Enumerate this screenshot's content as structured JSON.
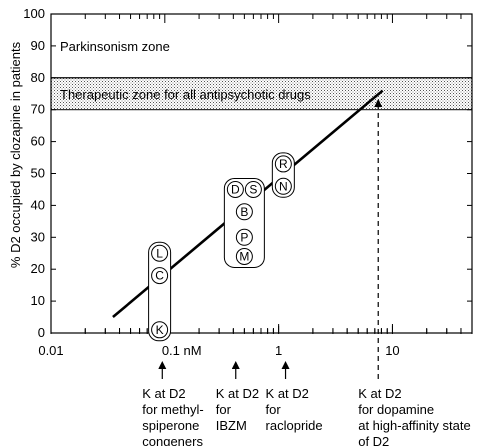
{
  "chart_data": {
    "type": "scatter",
    "title": "",
    "xlabel": "",
    "ylabel": "% D2 occupied by clozapine in patients",
    "x_scale": "log",
    "xlim": [
      0.01,
      50
    ],
    "ylim": [
      0,
      100
    ],
    "x_ticks": [
      {
        "value": 0.01,
        "label": "0.01"
      },
      {
        "value": 0.1,
        "label": "0.1 nM"
      },
      {
        "value": 1,
        "label": "1"
      },
      {
        "value": 10,
        "label": "10"
      }
    ],
    "y_ticks": [
      0,
      10,
      20,
      30,
      40,
      50,
      60,
      70,
      80,
      90,
      100
    ],
    "zones": [
      {
        "label": "Parkinsonism zone",
        "y_from": 80,
        "y_to": 100
      },
      {
        "label": "Therapeutic zone for all antipsychotic drugs",
        "y_from": 70,
        "y_to": 80
      }
    ],
    "trend_line": {
      "x": [
        0.035,
        8.2
      ],
      "y": [
        5,
        76
      ]
    },
    "groups": [
      {
        "x": 0.09,
        "points": [
          {
            "label": "L",
            "y": 25
          },
          {
            "label": "C",
            "y": 18
          },
          {
            "label": "K",
            "y": 1
          }
        ]
      },
      {
        "x": 0.5,
        "points": [
          {
            "label": "D",
            "y": 45
          },
          {
            "label": "S",
            "y": 45
          },
          {
            "label": "B",
            "y": 38
          },
          {
            "label": "P",
            "y": 30
          },
          {
            "label": "M",
            "y": 24
          }
        ]
      },
      {
        "x": 1.1,
        "points": [
          {
            "label": "R",
            "y": 53
          },
          {
            "label": "N",
            "y": 46
          }
        ]
      }
    ],
    "annotations": [
      {
        "x": 0.095,
        "lines": [
          "K at D2",
          "for methyl-",
          "spiperone",
          "congeners"
        ],
        "arrow": "solid"
      },
      {
        "x": 0.42,
        "lines": [
          "K at D2",
          "for",
          "IBZM"
        ],
        "arrow": "solid"
      },
      {
        "x": 1.15,
        "lines": [
          "K at D2",
          "for",
          "raclopride"
        ],
        "arrow": "solid"
      },
      {
        "x": 7.5,
        "lines": [
          "K at D2",
          "for dopamine",
          "at high-affinity state",
          "of D2"
        ],
        "arrow": "dashed"
      }
    ]
  }
}
